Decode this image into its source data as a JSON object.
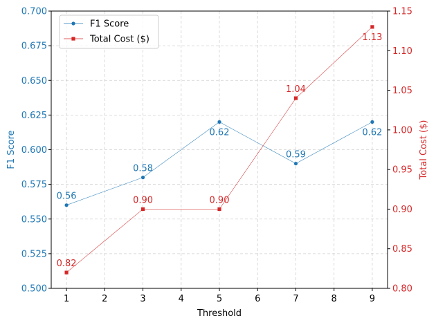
{
  "chart_data": {
    "type": "line",
    "xlabel": "Threshold",
    "x_ticks": [
      1,
      2,
      3,
      4,
      5,
      6,
      7,
      8,
      9
    ],
    "xlim": [
      0.6,
      9.4
    ],
    "grid": true,
    "legend_position": "top-left",
    "left_axis": {
      "label": "F1 Score",
      "color": "#1f77b4",
      "ylim": [
        0.5,
        0.7
      ],
      "ticks": [
        0.5,
        0.525,
        0.55,
        0.575,
        0.6,
        0.625,
        0.65,
        0.675,
        0.7
      ],
      "tick_labels": [
        "0.500",
        "0.525",
        "0.550",
        "0.575",
        "0.600",
        "0.625",
        "0.650",
        "0.675",
        "0.700"
      ]
    },
    "right_axis": {
      "label": "Total Cost ($)",
      "color": "#d62728",
      "ylim": [
        0.8,
        1.15
      ],
      "ticks": [
        0.8,
        0.85,
        0.9,
        0.95,
        1.0,
        1.05,
        1.1,
        1.15
      ],
      "tick_labels": [
        "0.80",
        "0.85",
        "0.90",
        "0.95",
        "1.00",
        "1.05",
        "1.10",
        "1.15"
      ]
    },
    "series": [
      {
        "name": "F1 Score",
        "axis": "left",
        "color": "#1f77b4",
        "marker": "circle",
        "x": [
          1,
          3,
          5,
          7,
          9
        ],
        "y": [
          0.56,
          0.58,
          0.62,
          0.59,
          0.62
        ],
        "labels": [
          "0.56",
          "0.58",
          "0.62",
          "0.59",
          "0.62"
        ],
        "label_side": [
          "above",
          "above",
          "below",
          "above",
          "below"
        ]
      },
      {
        "name": "Total Cost ($)",
        "axis": "right",
        "color": "#d62728",
        "marker": "square",
        "x": [
          1,
          3,
          5,
          7,
          9
        ],
        "y": [
          0.82,
          0.9,
          0.9,
          1.04,
          1.13
        ],
        "labels": [
          "0.82",
          "0.90",
          "0.90",
          "1.04",
          "1.13"
        ],
        "label_side": [
          "above",
          "above",
          "above",
          "above",
          "below"
        ]
      }
    ]
  }
}
